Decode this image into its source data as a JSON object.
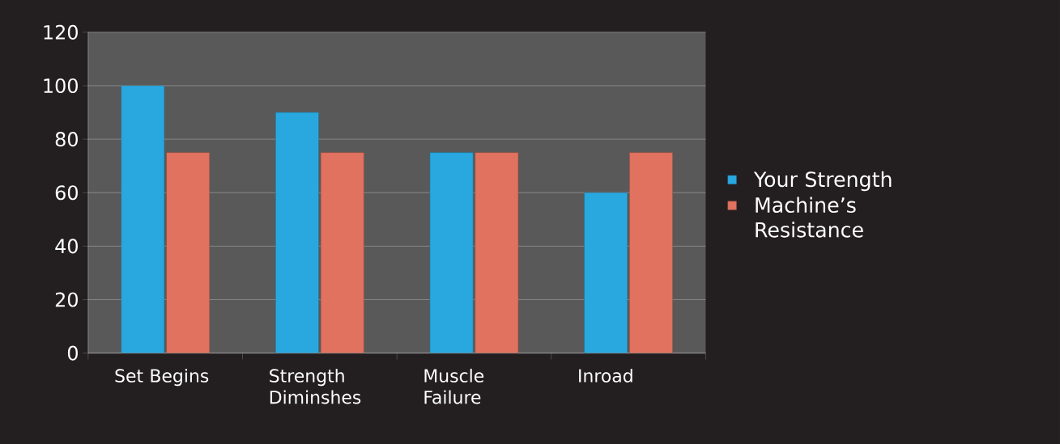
{
  "chart_data": {
    "type": "bar",
    "categories": [
      "Set Begins",
      "Strength Diminshes",
      "Muscle Failure",
      "Inroad"
    ],
    "series": [
      {
        "name": "Your Strength",
        "color": "#29a8e0",
        "values": [
          100,
          90,
          75,
          60
        ]
      },
      {
        "name": "Machine’s Resistance",
        "color": "#e0725f",
        "values": [
          75,
          75,
          75,
          75
        ]
      }
    ],
    "ylim": [
      0,
      120
    ],
    "yticks": [
      0,
      20,
      40,
      60,
      80,
      100,
      120
    ],
    "grid": "y",
    "legend": "right"
  }
}
